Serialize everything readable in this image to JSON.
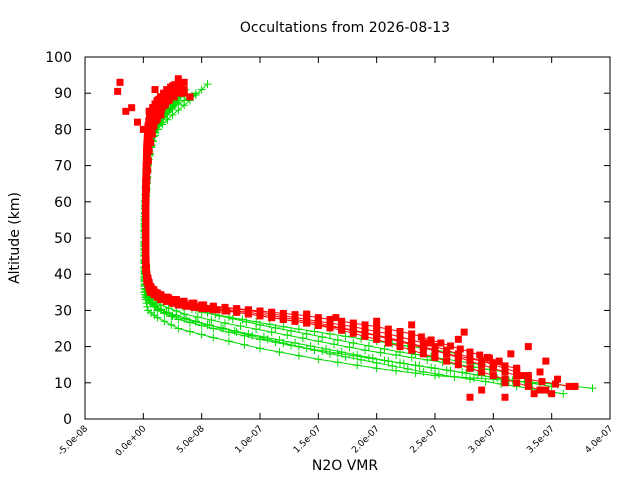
{
  "chart_data": {
    "type": "scatter",
    "title": "Occultations from 2026-08-13",
    "xlabel": "N2O VMR",
    "ylabel": "Altitude (km)",
    "xlim": [
      -5e-08,
      4e-07
    ],
    "ylim": [
      0,
      100
    ],
    "x_ticks": [
      "-5.0e-08",
      "0.0e+00",
      "5.0e-08",
      "1.0e-07",
      "1.5e-07",
      "2.0e-07",
      "2.5e-07",
      "3.0e-07",
      "3.5e-07",
      "4.0e-07"
    ],
    "y_ticks": [
      "0",
      "10",
      "20",
      "30",
      "40",
      "50",
      "60",
      "70",
      "80",
      "90",
      "100"
    ],
    "grid": false,
    "legend": "none",
    "series": [
      {
        "color": "#00dd00",
        "marker": "plus",
        "profiles": [
          {
            "x": [
              3.85e-07,
              3.4e-07,
              3e-07,
              2.5e-07,
              2e-07,
              1.5e-07,
              1e-07,
              6e-08,
              3e-08,
              1.2e-08,
              4e-09,
              2e-09,
              1e-09,
              1e-09,
              1e-09,
              1e-09,
              1.5e-09,
              2e-09,
              3e-09,
              4e-09,
              6e-09,
              1.2e-08,
              2.5e-08,
              4e-08,
              5.5e-08
            ],
            "y": [
              8.5,
              10,
              11,
              12,
              14,
              16.5,
              19.5,
              22.5,
              25,
              28,
              30,
              33,
              35,
              40,
              45,
              50,
              55,
              60,
              65,
              70,
              75,
              80,
              84,
              88,
              92.5
            ]
          },
          {
            "x": [
              3.6e-07,
              3.2e-07,
              2.8e-07,
              2.4e-07,
              2e-07,
              1.6e-07,
              1.2e-07,
              8e-08,
              4.5e-08,
              2e-08,
              6e-09,
              2e-09,
              1e-09,
              1e-09,
              1e-09,
              1e-09,
              1.5e-09,
              2e-09,
              3e-09,
              4e-09,
              5e-09,
              1e-08,
              2e-08,
              3.5e-08,
              4.5e-08
            ],
            "y": [
              7,
              9,
              11,
              13,
              15.5,
              18,
              21,
              24,
              27,
              29.5,
              32,
              35,
              38,
              42,
              47,
              52,
              57,
              62,
              67,
              72,
              77,
              81,
              85,
              88,
              90
            ]
          },
          {
            "x": [
              3.3e-07,
              2.9e-07,
              2.5e-07,
              2.1e-07,
              1.7e-07,
              1.3e-07,
              9e-08,
              5.5e-08,
              2.5e-08,
              1e-08,
              3e-09,
              1e-09,
              1e-09,
              1e-09,
              1e-09,
              1.5e-09,
              2e-09,
              3e-09,
              4e-09,
              8e-09,
              1.8e-08,
              3e-08
            ],
            "y": [
              10,
              12,
              14,
              16,
              18.5,
              21,
              23.5,
              26,
              28.5,
              31,
              33.5,
              36,
              40,
              45,
              50,
              55,
              60,
              65,
              70,
              78,
              84,
              88
            ]
          },
          {
            "x": [
              3.1e-07,
              2.7e-07,
              2.3e-07,
              1.9e-07,
              1.5e-07,
              1.1e-07,
              7e-08,
              3.5e-08,
              1.5e-08,
              5e-09,
              2e-09,
              1e-09,
              1e-09,
              1e-09,
              1.5e-09,
              2e-09,
              3e-09,
              5e-09,
              1e-08,
              2e-08,
              3e-08
            ],
            "y": [
              13,
              15,
              17,
              19,
              21.5,
              24,
              26.5,
              29,
              31.5,
              34,
              37,
              42,
              48,
              54,
              60,
              66,
              72,
              78,
              82,
              86,
              89
            ]
          },
          {
            "x": [
              2.9e-07,
              2.6e-07,
              2.2e-07,
              1.8e-07,
              1.4e-07,
              1e-07,
              6.5e-08,
              3.5e-08,
              1.5e-08,
              5e-09,
              2e-09,
              1e-09,
              1e-09,
              1.5e-09,
              2e-09,
              3e-09,
              6e-09,
              1.2e-08,
              2.4e-08,
              3.6e-08
            ],
            "y": [
              15,
              16.5,
              18.5,
              21,
              23.5,
              26,
              28.5,
              31,
              33.5,
              36,
              40,
              46,
              52,
              58,
              64,
              70,
              76,
              82,
              86,
              91
            ]
          },
          {
            "x": [
              2.7e-07,
              2.4e-07,
              2e-07,
              1.6e-07,
              1.2e-07,
              8.5e-08,
              5e-08,
              2.5e-08,
              1e-08,
              4e-09,
              1.5e-09,
              1e-09,
              1e-09,
              1.5e-09,
              2.5e-09,
              4e-09,
              8e-09,
              1.5e-08,
              2.8e-08
            ],
            "y": [
              18,
              19.5,
              21.5,
              23.5,
              25.5,
              27.5,
              29.5,
              32,
              34.5,
              37,
              41,
              47,
              53,
              59,
              65,
              71,
              77,
              83,
              87
            ]
          },
          {
            "x": [
              3.5e-07,
              3e-07,
              2.6e-07,
              2.2e-07,
              1.8e-07,
              1.4e-07,
              1e-07,
              6e-08,
              3e-08,
              1.2e-08,
              4e-09,
              1.5e-09,
              1e-09,
              1e-09,
              1.5e-09,
              2.5e-09,
              4e-09,
              9e-09,
              2e-08,
              3.2e-08
            ],
            "y": [
              9,
              11.5,
              13.5,
              15.5,
              17.5,
              19.5,
              22,
              25,
              27.5,
              30,
              33,
              37,
              43,
              50,
              57,
              64,
              71,
              78,
              84,
              89
            ]
          }
        ]
      },
      {
        "color": "#ff0000",
        "marker": "square",
        "profiles": [
          {
            "x": [
              3.65e-07,
              3.3e-07,
              3e-07,
              2.7e-07,
              2.4e-07,
              2.1e-07,
              1.8e-07,
              1.5e-07,
              1.2e-07,
              9e-08,
              6e-08,
              3.5e-08,
              2e-08,
              1e-08,
              5e-09,
              3e-09,
              2e-09,
              2e-09,
              2e-09,
              2e-09,
              2e-09,
              2.5e-09,
              3e-09,
              4e-09,
              6e-09,
              1e-08,
              1.5e-08,
              2.5e-08,
              3.5e-08
            ],
            "y": [
              9,
              11,
              14,
              17,
              20,
              22.5,
              24.5,
              26.5,
              28,
              29.5,
              30.5,
              31.5,
              33,
              35,
              37,
              40,
              45,
              50,
              55,
              60,
              65,
              70,
              75,
              80,
              84,
              87,
              89,
              91,
              93
            ]
          },
          {
            "x": [
              3.3e-07,
              3e-07,
              2.7e-07,
              2.4e-07,
              2.1e-07,
              1.8e-07,
              1.5e-07,
              1.2e-07,
              9e-08,
              6e-08,
              3.5e-08,
              1.5e-08,
              6e-09,
              3e-09,
              2e-09,
              2e-09,
              2e-09,
              2e-09,
              2.5e-09,
              3e-09,
              4e-09,
              6e-09,
              1.2e-08,
              2e-08,
              3e-08
            ],
            "y": [
              12,
              15,
              18,
              21,
              23.5,
              25.5,
              27,
              28.5,
              30,
              31,
              32.5,
              34,
              36.5,
              40,
              46,
              52,
              58,
              64,
              70,
              76,
              81,
              85,
              88,
              91,
              93
            ]
          },
          {
            "x": [
              3.05e-07,
              2.8e-07,
              2.55e-07,
              2.3e-07,
              2e-07,
              1.7e-07,
              1.4e-07,
              1.1e-07,
              8e-08,
              5e-08,
              2.5e-08,
              1e-08,
              4e-09,
              2e-09,
              2e-09,
              2e-09,
              2e-09,
              2.5e-09,
              3e-09,
              5e-09,
              1e-08,
              2e-08,
              3e-08
            ],
            "y": [
              16,
              18.5,
              21,
              23.5,
              25.5,
              27,
              28.5,
              29.5,
              30.5,
              31.5,
              33,
              35,
              37.5,
              41,
              47,
              54,
              61,
              68,
              74,
              80,
              85,
              89,
              92
            ]
          },
          {
            "x": [
              3.5e-07,
              3.2e-07,
              2.9e-07,
              2.6e-07,
              2.3e-07,
              2e-07,
              1.7e-07,
              1.4e-07,
              1.1e-07,
              8e-08,
              5e-08,
              3e-08,
              1.5e-08,
              6e-09,
              3e-09,
              2e-09,
              2e-09,
              2e-09,
              2.5e-09,
              3.5e-09,
              6e-09,
              1.2e-08,
              2.2e-08,
              3.5e-08
            ],
            "y": [
              7,
              10,
              13,
              16,
              19,
              22,
              24.5,
              26.5,
              28,
              29.5,
              30.5,
              31.5,
              33,
              35.5,
              39,
              44,
              51,
              58,
              65,
              72,
              79,
              84,
              88,
              91
            ]
          },
          {
            "x": [
              3.2e-07,
              2.9e-07,
              2.6e-07,
              2.3e-07,
              2e-07,
              1.7e-07,
              1.4e-07,
              1.1e-07,
              8e-08,
              5.5e-08,
              3e-08,
              1.5e-08,
              6e-09,
              3e-09,
              2e-09,
              2e-09,
              2e-09,
              3e-09,
              5e-09,
              9e-09,
              1.6e-08,
              2.6e-08
            ],
            "y": [
              14,
              16,
              18,
              20.5,
              23,
              25,
              26.5,
              28,
              29.5,
              30.5,
              31.5,
              33,
              35,
              38,
              43,
              50,
              58,
              66,
              74,
              81,
              86,
              90
            ]
          }
        ],
        "scatter": {
          "x": [
            2.8e-07,
            2.9e-07,
            3.1e-07,
            3.25e-07,
            3.4e-07,
            3.55e-07,
            3.7e-07,
            3e-07,
            3.15e-07,
            3.3e-07,
            3.45e-07,
            2.6e-07,
            2.7e-07,
            2.95e-07,
            3.2e-07,
            3.35e-07,
            3.1e-07,
            3.45e-07,
            2.75e-07,
            2.45e-07,
            2.3e-07,
            2.2e-07,
            2e-07,
            1.8e-07,
            1.65e-07,
            1.4e-07,
            -2e-08,
            -2.2e-08,
            -1e-08,
            1e-08,
            2e-08,
            3e-08,
            1.5e-08,
            -5e-09,
            0.0,
            5e-09,
            2.5e-08,
            3.5e-08,
            4e-08,
            -1.5e-08,
            1.2e-08
          ],
          "y": [
            6,
            8,
            10,
            12,
            13,
            11,
            9,
            15,
            18,
            20,
            16,
            19,
            22,
            17,
            14,
            7,
            6,
            8,
            24,
            21,
            26,
            23,
            27,
            25,
            28,
            29,
            93,
            90.5,
            86,
            91,
            88,
            94,
            84,
            82,
            80,
            85,
            92,
            90,
            89,
            85,
            83
          ]
        }
      }
    ]
  }
}
